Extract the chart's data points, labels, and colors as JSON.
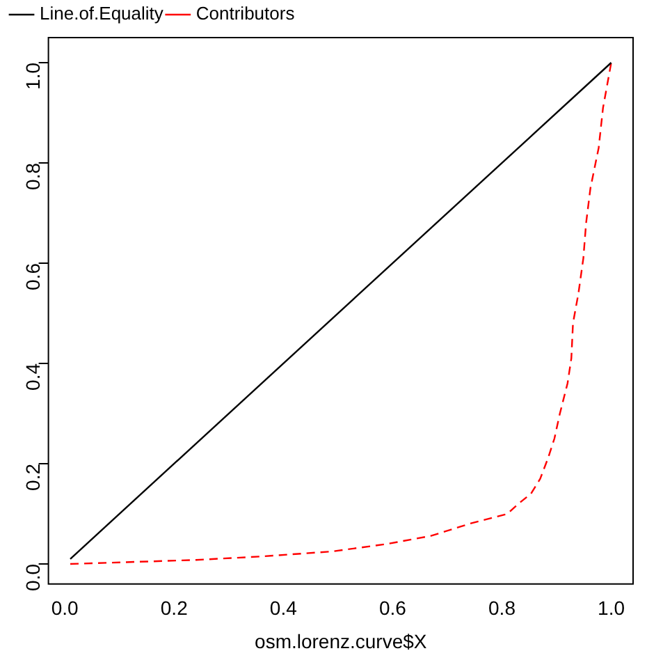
{
  "chart_data": {
    "type": "line",
    "xlabel": "osm.lorenz.curve$X",
    "xlim": [
      -0.03,
      1.04
    ],
    "ylim": [
      -0.04,
      1.05
    ],
    "xticks": [
      {
        "value": 0,
        "label": "0.0"
      },
      0.2,
      0.4,
      0.6,
      0.8,
      {
        "value": 1,
        "label": "1.0"
      }
    ],
    "yticks": [
      {
        "value": 0,
        "label": "0.0"
      },
      0.2,
      0.4,
      0.6,
      0.8,
      {
        "value": 1,
        "label": "1.0"
      }
    ],
    "legend": "top left",
    "grid": false,
    "series": [
      {
        "name": "Line.of.Equality",
        "color": "#000000",
        "line_style": "solid",
        "x": [
          0.01,
          1
        ],
        "values": [
          0.01,
          1
        ]
      },
      {
        "name": "Contributors",
        "color": "#ff0000",
        "line_style": "dashed",
        "x": [
          0.01,
          0.24,
          0.36,
          0.49,
          0.59,
          0.67,
          0.74,
          0.81,
          0.83,
          0.853,
          0.87,
          0.884,
          0.896,
          0.906,
          0.92,
          0.927,
          0.93,
          0.94,
          0.949,
          0.954,
          0.962,
          0.977,
          0.985,
          1
        ],
        "values": [
          0,
          0.008,
          0.015,
          0.025,
          0.04,
          0.056,
          0.08,
          0.1,
          0.12,
          0.14,
          0.17,
          0.21,
          0.25,
          0.3,
          0.36,
          0.41,
          0.48,
          0.54,
          0.61,
          0.68,
          0.75,
          0.83,
          0.91,
          1
        ]
      }
    ]
  }
}
